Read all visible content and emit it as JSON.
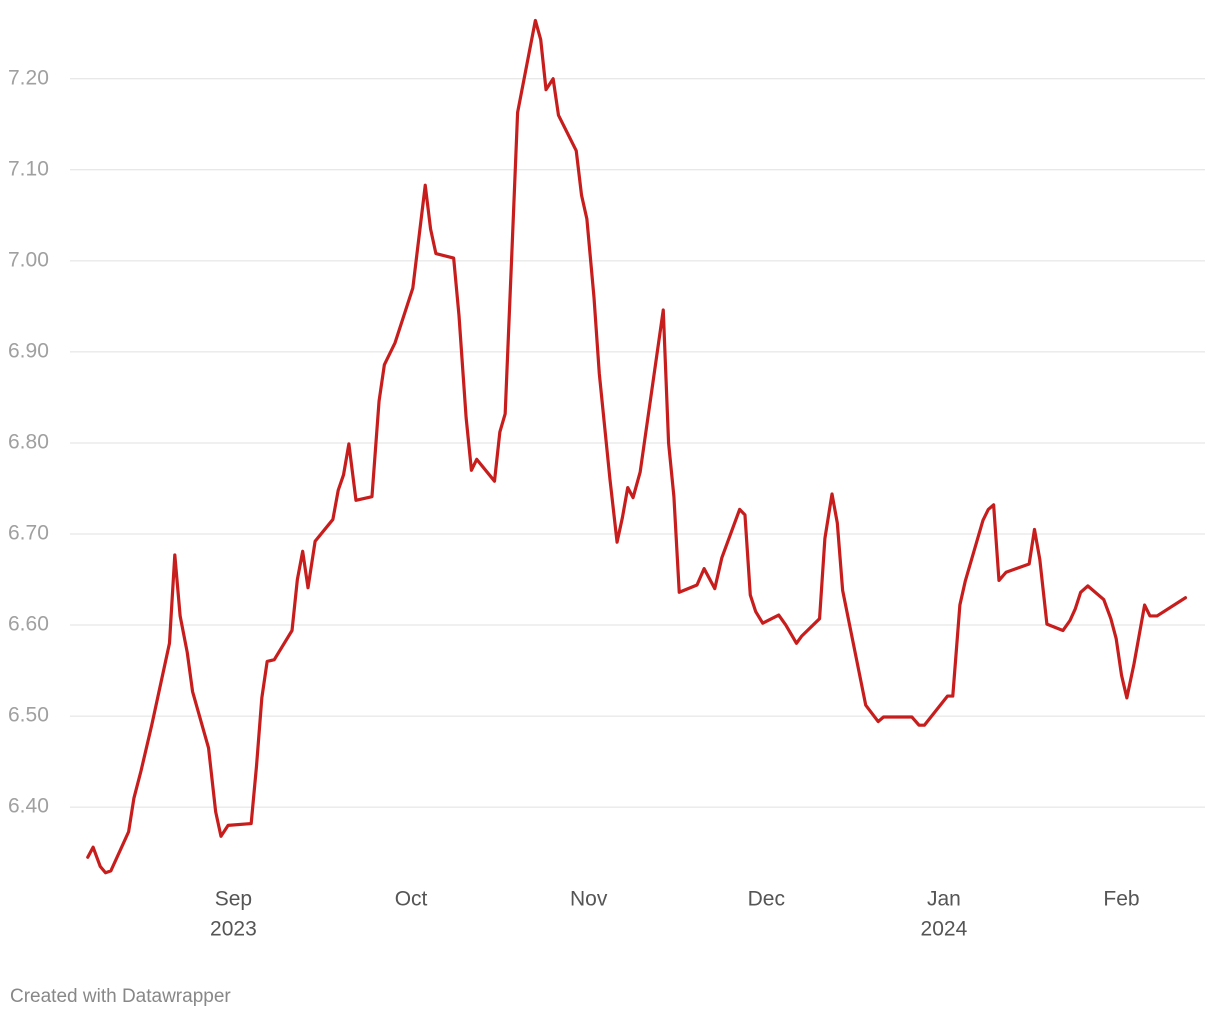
{
  "chart_data": {
    "type": "line",
    "color": "#c71e1d",
    "grid": true,
    "credit": "Created with Datawrapper",
    "xlim": [
      8.08,
      14.47
    ],
    "xticks": [
      {
        "value": 9,
        "label": "Sep",
        "sublabel": "2023"
      },
      {
        "value": 10,
        "label": "Oct"
      },
      {
        "value": 11,
        "label": "Nov"
      },
      {
        "value": 12,
        "label": "Dec"
      },
      {
        "value": 13,
        "label": "Jan",
        "sublabel": "2024"
      },
      {
        "value": 14,
        "label": "Feb"
      }
    ],
    "ylim": [
      6.32,
      7.27
    ],
    "yticks": [
      {
        "value": 6.4,
        "label": "6.40"
      },
      {
        "value": 6.5,
        "label": "6.50"
      },
      {
        "value": 6.6,
        "label": "6.60"
      },
      {
        "value": 6.7,
        "label": "6.70"
      },
      {
        "value": 6.8,
        "label": "6.80"
      },
      {
        "value": 6.9,
        "label": "6.90"
      },
      {
        "value": 7.0,
        "label": "7.00"
      },
      {
        "value": 7.1,
        "label": "7.10"
      },
      {
        "value": 7.2,
        "label": "7.20"
      }
    ],
    "x": [
      8.18,
      8.21,
      8.25,
      8.28,
      8.31,
      8.41,
      8.44,
      8.48,
      8.54,
      8.64,
      8.67,
      8.7,
      8.74,
      8.77,
      8.86,
      8.9,
      8.93,
      8.97,
      9.1,
      9.13,
      9.16,
      9.19,
      9.23,
      9.33,
      9.36,
      9.39,
      9.42,
      9.46,
      9.56,
      9.59,
      9.62,
      9.65,
      9.69,
      9.78,
      9.82,
      9.85,
      9.91,
      10.01,
      10.08,
      10.11,
      10.14,
      10.24,
      10.27,
      10.31,
      10.34,
      10.37,
      10.47,
      10.5,
      10.53,
      10.57,
      10.6,
      10.7,
      10.73,
      10.76,
      10.8,
      10.83,
      10.93,
      10.96,
      10.99,
      11.03,
      11.06,
      11.12,
      11.16,
      11.19,
      11.22,
      11.25,
      11.29,
      11.42,
      11.45,
      11.48,
      11.51,
      11.61,
      11.65,
      11.71,
      11.75,
      11.85,
      11.88,
      11.91,
      11.94,
      11.98,
      12.07,
      12.11,
      12.17,
      12.2,
      12.3,
      12.33,
      12.37,
      12.4,
      12.43,
      12.56,
      12.63,
      12.66,
      12.82,
      12.86,
      12.89,
      13.02,
      13.05,
      13.09,
      13.12,
      13.22,
      13.25,
      13.28,
      13.31,
      13.35,
      13.48,
      13.51,
      13.54,
      13.58,
      13.67,
      13.71,
      13.74,
      13.77,
      13.81,
      13.9,
      13.94,
      13.97,
      14.0,
      14.03,
      14.07,
      14.13,
      14.16,
      14.2,
      14.36
    ],
    "values": [
      6.345,
      6.356,
      6.335,
      6.328,
      6.33,
      6.373,
      6.41,
      6.44,
      6.49,
      6.58,
      6.677,
      6.61,
      6.57,
      6.527,
      6.465,
      6.395,
      6.368,
      6.38,
      6.382,
      6.445,
      6.52,
      6.56,
      6.562,
      6.594,
      6.65,
      6.681,
      6.641,
      6.692,
      6.716,
      6.748,
      6.765,
      6.799,
      6.737,
      6.741,
      6.846,
      6.886,
      6.91,
      6.97,
      7.083,
      7.035,
      7.008,
      7.003,
      6.94,
      6.828,
      6.77,
      6.782,
      6.758,
      6.812,
      6.832,
      7.02,
      7.163,
      7.264,
      7.243,
      7.188,
      7.2,
      7.16,
      7.121,
      7.072,
      7.046,
      6.96,
      6.876,
      6.76,
      6.691,
      6.718,
      6.751,
      6.74,
      6.768,
      6.946,
      6.8,
      6.741,
      6.636,
      6.644,
      6.662,
      6.64,
      6.674,
      6.727,
      6.721,
      6.633,
      6.615,
      6.602,
      6.611,
      6.6,
      6.58,
      6.588,
      6.607,
      6.695,
      6.744,
      6.712,
      6.638,
      6.512,
      6.494,
      6.499,
      6.499,
      6.49,
      6.49,
      6.522,
      6.522,
      6.622,
      6.648,
      6.715,
      6.727,
      6.732,
      6.649,
      6.658,
      6.667,
      6.705,
      6.672,
      6.601,
      6.594,
      6.605,
      6.618,
      6.636,
      6.643,
      6.628,
      6.607,
      6.585,
      6.545,
      6.52,
      6.557,
      6.622,
      6.61,
      6.61,
      6.63
    ]
  }
}
